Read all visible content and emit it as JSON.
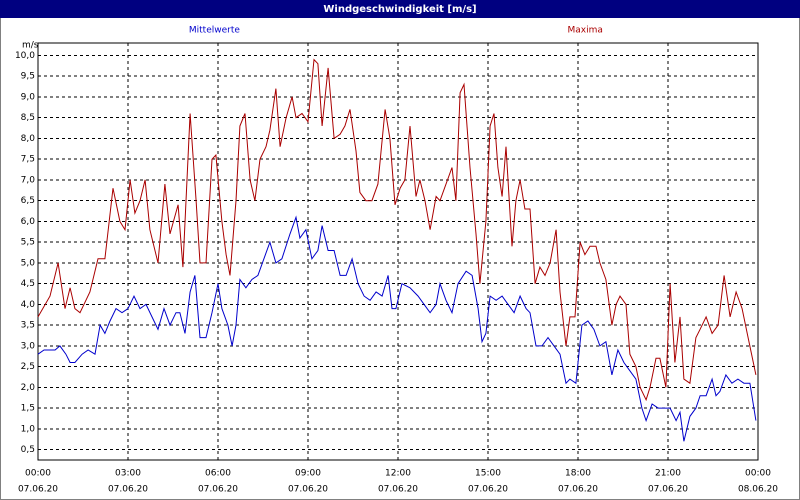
{
  "chart_data": {
    "type": "line",
    "title": "Windgeschwindigkeit [m/s]",
    "y_label": "m/s",
    "xlim": [
      0,
      24
    ],
    "ylim": [
      0.25,
      10.3
    ],
    "grid": true,
    "xticks": [
      {
        "value": 0,
        "label": "00:00"
      },
      {
        "value": 3,
        "label": "03:00"
      },
      {
        "value": 6,
        "label": "06:00"
      },
      {
        "value": 9,
        "label": "09:00"
      },
      {
        "value": 12,
        "label": "12:00"
      },
      {
        "value": 15,
        "label": "15:00"
      },
      {
        "value": 18,
        "label": "18:00"
      },
      {
        "value": 21,
        "label": "21:00"
      },
      {
        "value": 24,
        "label": "00:00"
      }
    ],
    "xtick_dates": [
      "07.06.20",
      "07.06.20",
      "07.06.20",
      "07.06.20",
      "07.06.20",
      "07.06.20",
      "07.06.20",
      "07.06.20",
      "08.06.20"
    ],
    "yticks": [
      {
        "value": 0.5,
        "label": "0,5"
      },
      {
        "value": 1,
        "label": "1,0"
      },
      {
        "value": 1.5,
        "label": "1,5"
      },
      {
        "value": 2,
        "label": "2,0"
      },
      {
        "value": 2.5,
        "label": "2,5"
      },
      {
        "value": 3,
        "label": "3,0"
      },
      {
        "value": 3.5,
        "label": "3,5"
      },
      {
        "value": 4,
        "label": "4,0"
      },
      {
        "value": 4.5,
        "label": "4,5"
      },
      {
        "value": 5,
        "label": "5,0"
      },
      {
        "value": 5.5,
        "label": "5,5"
      },
      {
        "value": 6,
        "label": "6,0"
      },
      {
        "value": 6.5,
        "label": "6,5"
      },
      {
        "value": 7,
        "label": "7,0"
      },
      {
        "value": 7.5,
        "label": "7,5"
      },
      {
        "value": 8,
        "label": "8,0"
      },
      {
        "value": 8.5,
        "label": "8,5"
      },
      {
        "value": 9,
        "label": "9,0"
      },
      {
        "value": 9.5,
        "label": "9,5"
      },
      {
        "value": 10,
        "label": "10,0"
      }
    ],
    "series": [
      {
        "name": "Mittelwerte",
        "color": "#0000cc",
        "x": [
          0,
          0.2,
          0.57,
          0.73,
          0.93,
          1.07,
          1.23,
          1.47,
          1.67,
          1.9,
          2.07,
          2.23,
          2.4,
          2.6,
          2.8,
          3,
          3.2,
          3.4,
          3.6,
          3.8,
          4,
          4.2,
          4.4,
          4.6,
          4.73,
          4.9,
          5.07,
          5.23,
          5.4,
          5.6,
          5.8,
          6,
          6.13,
          6.33,
          6.47,
          6.6,
          6.73,
          6.93,
          7.13,
          7.33,
          7.53,
          7.73,
          7.93,
          8.13,
          8.4,
          8.6,
          8.73,
          8.93,
          9.13,
          9.33,
          9.47,
          9.67,
          9.87,
          10.07,
          10.27,
          10.47,
          10.67,
          10.87,
          11.07,
          11.27,
          11.47,
          11.67,
          11.8,
          11.93,
          12.13,
          12.4,
          12.67,
          12.87,
          13.07,
          13.27,
          13.4,
          13.6,
          13.8,
          14,
          14.27,
          14.47,
          14.67,
          14.8,
          14.93,
          15.07,
          15.27,
          15.47,
          15.67,
          15.87,
          16.07,
          16.27,
          16.4,
          16.6,
          16.8,
          17,
          17.2,
          17.4,
          17.6,
          17.73,
          17.93,
          18.13,
          18.33,
          18.53,
          18.73,
          18.93,
          19.13,
          19.33,
          19.53,
          19.73,
          19.93,
          20.13,
          20.27,
          20.47,
          20.67,
          20.87,
          21.07,
          21.27,
          21.4,
          21.53,
          21.73,
          21.93,
          22.07,
          22.27,
          22.47,
          22.6,
          22.73,
          22.93,
          23.13,
          23.33,
          23.53,
          23.73,
          23.93
        ],
        "values": [
          2.8,
          2.9,
          2.9,
          3.0,
          2.8,
          2.6,
          2.6,
          2.8,
          2.9,
          2.8,
          3.5,
          3.3,
          3.6,
          3.9,
          3.8,
          3.9,
          4.2,
          3.9,
          4.0,
          3.7,
          3.4,
          3.9,
          3.5,
          3.8,
          3.8,
          3.3,
          4.3,
          4.7,
          3.2,
          3.2,
          3.8,
          4.5,
          3.9,
          3.5,
          3.0,
          3.5,
          4.6,
          4.4,
          4.6,
          4.7,
          5.1,
          5.5,
          5.0,
          5.1,
          5.7,
          6.1,
          5.6,
          5.8,
          5.1,
          5.3,
          5.9,
          5.3,
          5.3,
          4.7,
          4.7,
          5.1,
          4.5,
          4.2,
          4.1,
          4.3,
          4.2,
          4.7,
          3.9,
          3.9,
          4.5,
          4.4,
          4.2,
          4.0,
          3.8,
          4.0,
          4.5,
          4.1,
          3.8,
          4.5,
          4.8,
          4.7,
          3.9,
          3.1,
          3.3,
          4.2,
          4.1,
          4.2,
          4.0,
          3.8,
          4.2,
          3.9,
          3.8,
          3.0,
          3.0,
          3.2,
          3.0,
          2.8,
          2.1,
          2.2,
          2.1,
          3.5,
          3.6,
          3.4,
          3.0,
          3.1,
          2.3,
          2.9,
          2.6,
          2.4,
          2.2,
          1.5,
          1.2,
          1.6,
          1.5,
          1.5,
          1.5,
          1.2,
          1.4,
          0.7,
          1.3,
          1.5,
          1.8,
          1.8,
          2.2,
          1.8,
          1.9,
          2.3,
          2.1,
          2.2,
          2.1,
          2.1,
          1.2
        ]
      },
      {
        "name": "Maxima",
        "color": "#aa0000",
        "x": [
          0,
          0.4,
          0.67,
          0.9,
          1.07,
          1.23,
          1.4,
          1.73,
          2,
          2.23,
          2.5,
          2.73,
          2.9,
          3.07,
          3.23,
          3.4,
          3.57,
          3.73,
          4,
          4.23,
          4.4,
          4.67,
          4.83,
          5.07,
          5.27,
          5.4,
          5.6,
          5.8,
          5.93,
          6.13,
          6.27,
          6.4,
          6.6,
          6.73,
          6.9,
          7.07,
          7.23,
          7.4,
          7.6,
          7.73,
          7.93,
          8.07,
          8.27,
          8.47,
          8.6,
          8.8,
          9,
          9.2,
          9.33,
          9.47,
          9.67,
          9.87,
          10.07,
          10.23,
          10.4,
          10.6,
          10.73,
          10.93,
          11.13,
          11.33,
          11.57,
          11.73,
          11.9,
          12.07,
          12.23,
          12.4,
          12.6,
          12.73,
          12.9,
          13.07,
          13.27,
          13.4,
          13.6,
          13.8,
          13.93,
          14.07,
          14.2,
          14.4,
          14.6,
          14.73,
          14.93,
          15.07,
          15.2,
          15.33,
          15.47,
          15.6,
          15.8,
          15.93,
          16.07,
          16.23,
          16.4,
          16.57,
          16.73,
          16.9,
          17.07,
          17.27,
          17.4,
          17.6,
          17.73,
          17.9,
          18.07,
          18.23,
          18.4,
          18.6,
          18.73,
          18.93,
          19.13,
          19.27,
          19.4,
          19.6,
          19.73,
          19.93,
          20.07,
          20.27,
          20.4,
          20.6,
          20.73,
          20.93,
          21.07,
          21.23,
          21.4,
          21.53,
          21.73,
          21.93,
          22.07,
          22.27,
          22.47,
          22.67,
          22.87,
          23.07,
          23.27,
          23.47,
          23.67,
          23.93
        ],
        "values": [
          3.7,
          4.2,
          5.0,
          3.9,
          4.4,
          3.9,
          3.8,
          4.3,
          5.1,
          5.1,
          6.8,
          6.0,
          5.8,
          7.0,
          6.2,
          6.5,
          7.0,
          5.8,
          5.0,
          6.9,
          5.7,
          6.4,
          4.9,
          8.6,
          6.5,
          5.0,
          5.0,
          7.5,
          7.6,
          6.0,
          5.2,
          4.7,
          6.5,
          8.3,
          8.6,
          7.0,
          6.5,
          7.5,
          7.8,
          8.2,
          9.2,
          7.8,
          8.5,
          9.0,
          8.5,
          8.6,
          8.4,
          9.9,
          9.8,
          8.3,
          9.7,
          8.0,
          8.1,
          8.3,
          8.7,
          7.7,
          6.7,
          6.5,
          6.5,
          6.9,
          8.7,
          8.0,
          6.4,
          6.8,
          7.0,
          8.3,
          6.6,
          7.0,
          6.5,
          5.8,
          6.6,
          6.5,
          6.9,
          7.3,
          6.5,
          9.1,
          9.3,
          7.3,
          5.7,
          4.5,
          6.0,
          8.3,
          8.6,
          7.3,
          6.6,
          7.8,
          5.4,
          6.5,
          7.0,
          6.3,
          6.3,
          4.5,
          4.9,
          4.7,
          5.0,
          5.8,
          4.3,
          3.0,
          3.7,
          3.7,
          5.5,
          5.2,
          5.4,
          5.4,
          5.0,
          4.6,
          3.5,
          4.0,
          4.2,
          4.0,
          2.8,
          2.5,
          2.0,
          1.7,
          2.0,
          2.7,
          2.7,
          2.0,
          4.5,
          2.6,
          3.7,
          2.2,
          2.1,
          3.2,
          3.4,
          3.7,
          3.3,
          3.5,
          4.7,
          3.7,
          4.3,
          3.9,
          3.2,
          2.3
        ]
      }
    ]
  }
}
